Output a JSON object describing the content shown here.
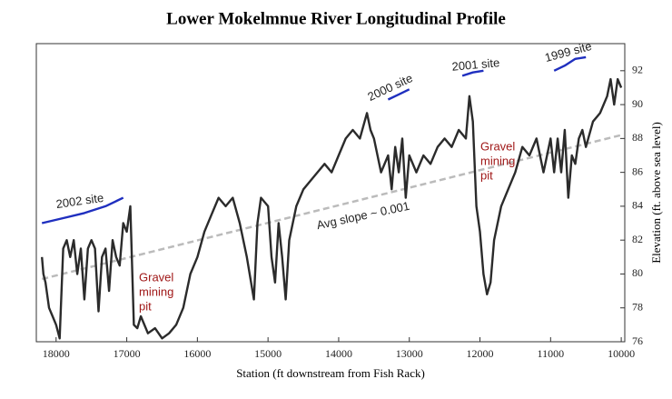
{
  "chart_data": {
    "type": "line",
    "title": "Lower Mokelmnue River Longitudinal Profile",
    "xlabel": "Station (ft downstream from Fish Rack)",
    "ylabel": "Elevation (ft. above sea level)",
    "xlim": [
      18280,
      9950
    ],
    "xticks": [
      18000,
      17000,
      16000,
      15000,
      14000,
      13000,
      12000,
      11000,
      10000
    ],
    "ylim": [
      76,
      93.6
    ],
    "yticks": [
      76,
      78,
      80,
      82,
      84,
      86,
      88,
      90,
      92
    ],
    "series": [
      {
        "color": "#2b2b2b",
        "x": [
          18200,
          18180,
          18150,
          18100,
          18050,
          18000,
          17950,
          17900,
          17850,
          17800,
          17750,
          17700,
          17650,
          17600,
          17550,
          17500,
          17450,
          17400,
          17350,
          17300,
          17250,
          17200,
          17150,
          17100,
          17050,
          17000,
          16950,
          16900,
          16850,
          16800,
          16700,
          16600,
          16500,
          16400,
          16300,
          16200,
          16100,
          16000,
          15900,
          15800,
          15700,
          15600,
          15500,
          15400,
          15300,
          15200,
          15150,
          15100,
          15000,
          14950,
          14900,
          14850,
          14800,
          14750,
          14700,
          14600,
          14500,
          14400,
          14300,
          14200,
          14100,
          14000,
          13900,
          13800,
          13700,
          13600,
          13550,
          13500,
          13400,
          13300,
          13250,
          13200,
          13150,
          13100,
          13050,
          13000,
          12900,
          12800,
          12700,
          12600,
          12500,
          12400,
          12300,
          12200,
          12150,
          12100,
          12050,
          12000,
          11950,
          11900,
          11850,
          11800,
          11700,
          11600,
          11500,
          11400,
          11300,
          11200,
          11100,
          11050,
          11000,
          10950,
          10900,
          10850,
          10800,
          10750,
          10700,
          10650,
          10600,
          10550,
          10500,
          10400,
          10300,
          10200,
          10150,
          10100,
          10050,
          10000
        ],
        "values": [
          81,
          80,
          79.5,
          78,
          77.5,
          77,
          76.2,
          81.5,
          82,
          81,
          82,
          80,
          81.5,
          78.5,
          81.5,
          82,
          81.5,
          77.8,
          81,
          81.5,
          79,
          82,
          81,
          80.5,
          83,
          82.5,
          84,
          77,
          76.8,
          77.5,
          76.5,
          76.8,
          76.2,
          76.5,
          77,
          78,
          80,
          81,
          82.5,
          83.5,
          84.5,
          84,
          84.5,
          83,
          81,
          78.5,
          83,
          84.5,
          84,
          81,
          79.5,
          83,
          81,
          78.5,
          82,
          84,
          85,
          85.5,
          86,
          86.5,
          86,
          87,
          88,
          88.5,
          88,
          89.5,
          88.5,
          88,
          86,
          87,
          85,
          87.5,
          86,
          88,
          84.5,
          87,
          86,
          87,
          86.5,
          87.5,
          88,
          87.5,
          88.5,
          88,
          90.5,
          89,
          84,
          82.5,
          80,
          78.8,
          79.5,
          82,
          84,
          85,
          86,
          87.5,
          87,
          88,
          86,
          87,
          88,
          86,
          88,
          86,
          88.5,
          84.5,
          87,
          86.5,
          88,
          88.5,
          87.5,
          89,
          89.5,
          90.5,
          91.5,
          90,
          91.5,
          91
        ]
      },
      {
        "name": "2002 site",
        "color": "#1f2fbf",
        "x": [
          18200,
          17900,
          17600,
          17300,
          17050
        ],
        "values": [
          83,
          83.3,
          83.6,
          84,
          84.5
        ]
      },
      {
        "name": "2000 site",
        "color": "#1f2fbf",
        "x": [
          13300,
          13150,
          13000
        ],
        "values": [
          90.3,
          90.6,
          90.9
        ]
      },
      {
        "name": "2001 site",
        "color": "#1f2fbf",
        "x": [
          12250,
          12100,
          11950
        ],
        "values": [
          91.7,
          91.9,
          92
        ]
      },
      {
        "name": "1999 site",
        "color": "#1f2fbf",
        "x": [
          10950,
          10800,
          10650,
          10500
        ],
        "values": [
          92,
          92.3,
          92.7,
          92.8
        ]
      },
      {
        "name": "Avg slope ~ 0.001",
        "color": "#bbbbbb",
        "dashed": true,
        "x": [
          18200,
          10000
        ],
        "values": [
          79.7,
          88.2
        ]
      }
    ],
    "annotations": [
      {
        "lines": [
          "Gravel",
          "mining",
          "pit"
        ],
        "color": "#a01818"
      },
      {
        "lines": [
          "Gravel",
          "mining",
          "pit"
        ],
        "color": "#a01818"
      }
    ]
  }
}
